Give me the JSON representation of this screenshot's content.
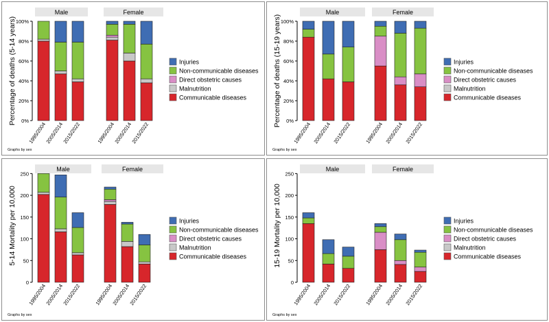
{
  "colors": {
    "Communicable diseases": "#d7262b",
    "Malnutrition": "#c8c8c8",
    "Direct obstetric causes": "#d98ec6",
    "Non-communicable diseases": "#86c341",
    "Injuries": "#3f6db3",
    "strip": "#e6e6e6"
  },
  "chart_data": [
    {
      "type": "bar",
      "stacked": true,
      "ylabel": "Percentage of deaths (5-14 years)",
      "yticks": [
        0,
        20,
        40,
        60,
        80,
        100
      ],
      "ytick_labels": [
        "0%",
        "20%",
        "40%",
        "60%",
        "80%",
        "100%"
      ],
      "ylim": [
        0,
        100
      ],
      "note": "Graphs by sex",
      "legend": [
        "Injuries",
        "Non-communicable diseases",
        "Direct obstetric causes",
        "Malnutrition",
        "Communicable diseases"
      ],
      "panels": [
        {
          "title": "Male",
          "categories": [
            "1995/2004",
            "2005/2014",
            "2015/2022"
          ],
          "series": [
            {
              "name": "Communicable diseases",
              "values": [
                80,
                47,
                39
              ]
            },
            {
              "name": "Malnutrition",
              "values": [
                2,
                3,
                3
              ]
            },
            {
              "name": "Direct obstetric causes",
              "values": [
                0,
                0,
                0
              ]
            },
            {
              "name": "Non-communicable diseases",
              "values": [
                18,
                29,
                37
              ]
            },
            {
              "name": "Injuries",
              "values": [
                0,
                21,
                21
              ]
            }
          ]
        },
        {
          "title": "Female",
          "categories": [
            "1995/2004",
            "2005/2014",
            "2015/2022"
          ],
          "series": [
            {
              "name": "Communicable diseases",
              "values": [
                81,
                60,
                38
              ]
            },
            {
              "name": "Malnutrition",
              "values": [
                3,
                8,
                4
              ]
            },
            {
              "name": "Direct obstetric causes",
              "values": [
                2,
                0,
                0
              ]
            },
            {
              "name": "Non-communicable diseases",
              "values": [
                11,
                29,
                35
              ]
            },
            {
              "name": "Injuries",
              "values": [
                3,
                3,
                23
              ]
            }
          ]
        }
      ]
    },
    {
      "type": "bar",
      "stacked": true,
      "ylabel": "Percentage of deaths (15-19 years)",
      "yticks": [
        0,
        20,
        40,
        60,
        80,
        100
      ],
      "ytick_labels": [
        "0%",
        "20%",
        "40%",
        "60%",
        "80%",
        "100%"
      ],
      "ylim": [
        0,
        100
      ],
      "note": "Graphs by sex",
      "legend": [
        "Injuries",
        "Non-communicable diseases",
        "Direct obstetric causes",
        "Malnutrition",
        "Communicable diseases"
      ],
      "panels": [
        {
          "title": "Male",
          "categories": [
            "1995/2004",
            "2005/2014",
            "2015/2022"
          ],
          "series": [
            {
              "name": "Communicable diseases",
              "values": [
                84,
                42,
                39
              ]
            },
            {
              "name": "Malnutrition",
              "values": [
                0,
                0,
                0
              ]
            },
            {
              "name": "Direct obstetric causes",
              "values": [
                0,
                0,
                0
              ]
            },
            {
              "name": "Non-communicable diseases",
              "values": [
                8,
                25,
                35
              ]
            },
            {
              "name": "Injuries",
              "values": [
                8,
                33,
                26
              ]
            }
          ]
        },
        {
          "title": "Female",
          "categories": [
            "1995/2004",
            "2005/2014",
            "2015/2022"
          ],
          "series": [
            {
              "name": "Communicable diseases",
              "values": [
                55,
                36,
                34
              ]
            },
            {
              "name": "Malnutrition",
              "values": [
                0,
                0,
                0
              ]
            },
            {
              "name": "Direct obstetric causes",
              "values": [
                30,
                8,
                13
              ]
            },
            {
              "name": "Non-communicable diseases",
              "values": [
                10,
                44,
                46
              ]
            },
            {
              "name": "Injuries",
              "values": [
                5,
                12,
                7
              ]
            }
          ]
        }
      ]
    },
    {
      "type": "bar",
      "stacked": true,
      "ylabel": "5-14 Mortality per 10,000",
      "yticks": [
        0,
        50,
        100,
        150,
        200,
        250
      ],
      "ytick_labels": [
        "0",
        "50",
        "100",
        "150",
        "200",
        "250"
      ],
      "ylim": [
        0,
        260
      ],
      "note": "Graphs by sex",
      "legend": [
        "Injuries",
        "Non-communicable diseases",
        "Direct obstetric causes",
        "Malnutrition",
        "Communicable diseases"
      ],
      "panels": [
        {
          "title": "Male",
          "categories": [
            "1995/2004",
            "2005/2014",
            "2015/2022"
          ],
          "series": [
            {
              "name": "Communicable diseases",
              "values": [
                202,
                116,
                63
              ]
            },
            {
              "name": "Malnutrition",
              "values": [
                5,
                7,
                5
              ]
            },
            {
              "name": "Direct obstetric causes",
              "values": [
                0,
                0,
                0
              ]
            },
            {
              "name": "Non-communicable diseases",
              "values": [
                43,
                73,
                58
              ]
            },
            {
              "name": "Injuries",
              "values": [
                0,
                51,
                34
              ]
            }
          ]
        },
        {
          "title": "Female",
          "categories": [
            "1995/2004",
            "2005/2014",
            "2015/2022"
          ],
          "series": [
            {
              "name": "Communicable diseases",
              "values": [
                179,
                82,
                42
              ]
            },
            {
              "name": "Malnutrition",
              "values": [
                7,
                12,
                5
              ]
            },
            {
              "name": "Direct obstetric causes",
              "values": [
                4,
                0,
                0
              ]
            },
            {
              "name": "Non-communicable diseases",
              "values": [
                24,
                40,
                39
              ]
            },
            {
              "name": "Injuries",
              "values": [
                5,
                4,
                24
              ]
            }
          ]
        }
      ]
    },
    {
      "type": "bar",
      "stacked": true,
      "ylabel": "15-19 Mortality per 10,000",
      "yticks": [
        0,
        50,
        100,
        150,
        200,
        250
      ],
      "ytick_labels": [
        "0",
        "50",
        "100",
        "150",
        "200",
        "250"
      ],
      "ylim": [
        0,
        260
      ],
      "note": "Graphs by sex",
      "legend": [
        "Injuries",
        "Non-communicable diseases",
        "Direct obstetric causes",
        "Malnutrition",
        "Communicable diseases"
      ],
      "panels": [
        {
          "title": "Male",
          "categories": [
            "1995/2004",
            "2005/2014",
            "2015/2022"
          ],
          "series": [
            {
              "name": "Communicable diseases",
              "values": [
                135,
                42,
                32
              ]
            },
            {
              "name": "Malnutrition",
              "values": [
                0,
                0,
                0
              ]
            },
            {
              "name": "Direct obstetric causes",
              "values": [
                0,
                0,
                0
              ]
            },
            {
              "name": "Non-communicable diseases",
              "values": [
                13,
                24,
                28
              ]
            },
            {
              "name": "Injuries",
              "values": [
                12,
                32,
                21
              ]
            }
          ]
        },
        {
          "title": "Female",
          "categories": [
            "1995/2004",
            "2005/2014",
            "2015/2022"
          ],
          "series": [
            {
              "name": "Communicable diseases",
              "values": [
                75,
                41,
                25
              ]
            },
            {
              "name": "Malnutrition",
              "values": [
                0,
                0,
                0
              ]
            },
            {
              "name": "Direct obstetric causes",
              "values": [
                40,
                9,
                10
              ]
            },
            {
              "name": "Non-communicable diseases",
              "values": [
                13,
                48,
                34
              ]
            },
            {
              "name": "Injuries",
              "values": [
                7,
                13,
                5
              ]
            }
          ]
        }
      ]
    }
  ]
}
